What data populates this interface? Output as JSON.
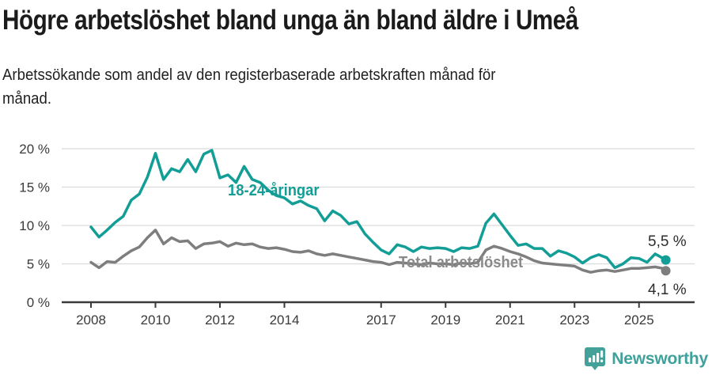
{
  "header": {
    "title": "Högre arbetslöshet bland unga än bland äldre i Umeå",
    "subtitle_line1": "Arbetssökande som andel av den registerbaserade arbetskraften månad för",
    "subtitle_line2": "månad."
  },
  "chart_data": {
    "type": "line",
    "title": "Högre arbetslöshet bland unga än bland äldre i Umeå",
    "subtitle": "Arbetssökande som andel av den registerbaserade arbetskraften månad för månad.",
    "y_unit": "%",
    "ylim": [
      0,
      20
    ],
    "grid": "horizontal",
    "legend": "inline-annotations",
    "yticks": [
      {
        "v": 0,
        "label": "0 %"
      },
      {
        "v": 5,
        "label": "5 %"
      },
      {
        "v": 10,
        "label": "10 %"
      },
      {
        "v": 15,
        "label": "15 %"
      },
      {
        "v": 20,
        "label": "20 %"
      }
    ],
    "xticks": [
      {
        "v": 2008,
        "label": "2008"
      },
      {
        "v": 2010,
        "label": "2010"
      },
      {
        "v": 2012,
        "label": "2012"
      },
      {
        "v": 2014,
        "label": "2014"
      },
      {
        "v": 2017,
        "label": "2017"
      },
      {
        "v": 2019,
        "label": "2019"
      },
      {
        "v": 2021,
        "label": "2021"
      },
      {
        "v": 2023,
        "label": "2023"
      },
      {
        "v": 2025,
        "label": "2025"
      }
    ],
    "x": [
      2008.0,
      2008.25,
      2008.5,
      2008.75,
      2009.0,
      2009.25,
      2009.5,
      2009.75,
      2010.0,
      2010.25,
      2010.5,
      2010.75,
      2011.0,
      2011.25,
      2011.5,
      2011.75,
      2012.0,
      2012.25,
      2012.5,
      2012.75,
      2013.0,
      2013.25,
      2013.5,
      2013.75,
      2014.0,
      2014.25,
      2014.5,
      2014.75,
      2015.0,
      2015.25,
      2015.5,
      2015.75,
      2016.0,
      2016.25,
      2016.5,
      2016.75,
      2017.0,
      2017.25,
      2017.5,
      2017.75,
      2018.0,
      2018.25,
      2018.5,
      2018.75,
      2019.0,
      2019.25,
      2019.5,
      2019.75,
      2020.0,
      2020.25,
      2020.5,
      2020.75,
      2021.0,
      2021.25,
      2021.5,
      2021.75,
      2022.0,
      2022.25,
      2022.5,
      2022.75,
      2023.0,
      2023.25,
      2023.5,
      2023.75,
      2024.0,
      2024.25,
      2024.5,
      2024.75,
      2025.0,
      2025.25,
      2025.5,
      2025.75,
      2025.83
    ],
    "series": [
      {
        "name": "18-24-åringar",
        "color": "#129E96",
        "end_label": "5,5 %",
        "end_value": 5.5,
        "values": [
          9.8,
          8.5,
          9.4,
          10.4,
          11.2,
          13.3,
          14.1,
          16.3,
          19.4,
          16.0,
          17.4,
          17.0,
          18.6,
          17.0,
          19.3,
          19.8,
          16.2,
          16.6,
          15.6,
          17.7,
          16.0,
          15.6,
          14.6,
          13.9,
          13.6,
          12.8,
          13.2,
          12.6,
          12.2,
          10.6,
          11.9,
          11.3,
          10.2,
          10.5,
          8.9,
          7.8,
          6.8,
          6.3,
          7.5,
          7.2,
          6.6,
          7.2,
          7.0,
          7.1,
          7.0,
          6.6,
          7.1,
          7.0,
          7.3,
          10.3,
          11.5,
          10.1,
          8.7,
          7.4,
          7.6,
          7.0,
          7.0,
          6.0,
          6.7,
          6.4,
          5.9,
          5.1,
          5.8,
          6.2,
          5.8,
          4.5,
          5.0,
          5.8,
          5.7,
          5.2,
          6.3,
          5.7,
          5.5
        ]
      },
      {
        "name": "Total arbetslöshet",
        "color": "#7E7E7E",
        "end_label": "4,1 %",
        "end_value": 4.1,
        "values": [
          5.2,
          4.5,
          5.3,
          5.2,
          6.0,
          6.7,
          7.2,
          8.4,
          9.4,
          7.6,
          8.4,
          7.9,
          8.0,
          7.0,
          7.6,
          7.7,
          7.9,
          7.3,
          7.7,
          7.5,
          7.6,
          7.2,
          7.0,
          7.1,
          6.9,
          6.6,
          6.5,
          6.7,
          6.3,
          6.1,
          6.3,
          6.1,
          5.9,
          5.7,
          5.5,
          5.3,
          5.2,
          4.9,
          5.2,
          5.1,
          5.0,
          4.9,
          5.1,
          5.0,
          5.0,
          4.9,
          5.1,
          5.0,
          5.2,
          6.8,
          7.3,
          7.0,
          6.6,
          6.3,
          5.9,
          5.4,
          5.1,
          5.0,
          4.9,
          4.8,
          4.7,
          4.2,
          3.9,
          4.1,
          4.2,
          4.0,
          4.2,
          4.4,
          4.4,
          4.5,
          4.6,
          4.4,
          4.1
        ]
      }
    ],
    "colors": {
      "accent_teal": "#129E96",
      "line_gray": "#7E7E7E",
      "grid": "#DBDBDB",
      "axis": "#3A3A3A"
    }
  },
  "footer": {
    "brand": "Newsworthy"
  }
}
